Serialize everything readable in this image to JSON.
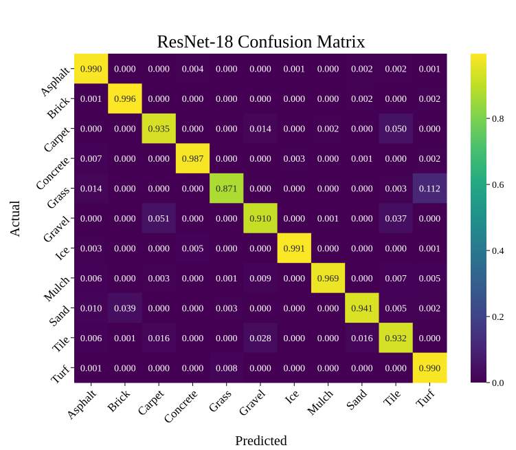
{
  "chart_data": {
    "type": "heatmap",
    "title": "ResNet-18 Confusion Matrix",
    "xlabel": "Predicted",
    "ylabel": "Actual",
    "x_categories": [
      "Asphalt",
      "Brick",
      "Carpet",
      "Concrete",
      "Grass",
      "Gravel",
      "Ice",
      "Mulch",
      "Sand",
      "Tile",
      "Turf"
    ],
    "y_categories": [
      "Asphalt",
      "Brick",
      "Carpet",
      "Concrete",
      "Grass",
      "Gravel",
      "Ice",
      "Mulch",
      "Sand",
      "Tile",
      "Turf"
    ],
    "values": [
      [
        0.99,
        0.0,
        0.0,
        0.004,
        0.0,
        0.0,
        0.001,
        0.0,
        0.002,
        0.002,
        0.001
      ],
      [
        0.001,
        0.996,
        0.0,
        0.0,
        0.0,
        0.0,
        0.0,
        0.0,
        0.002,
        0.0,
        0.002
      ],
      [
        0.0,
        0.0,
        0.935,
        0.0,
        0.0,
        0.014,
        0.0,
        0.002,
        0.0,
        0.05,
        0.0
      ],
      [
        0.007,
        0.0,
        0.0,
        0.987,
        0.0,
        0.0,
        0.003,
        0.0,
        0.001,
        0.0,
        0.002
      ],
      [
        0.014,
        0.0,
        0.0,
        0.0,
        0.871,
        0.0,
        0.0,
        0.0,
        0.0,
        0.003,
        0.112
      ],
      [
        0.0,
        0.0,
        0.051,
        0.0,
        0.0,
        0.91,
        0.0,
        0.001,
        0.0,
        0.037,
        0.0
      ],
      [
        0.003,
        0.0,
        0.0,
        0.005,
        0.0,
        0.0,
        0.991,
        0.0,
        0.0,
        0.0,
        0.001
      ],
      [
        0.006,
        0.0,
        0.003,
        0.0,
        0.001,
        0.009,
        0.0,
        0.969,
        0.0,
        0.007,
        0.005
      ],
      [
        0.01,
        0.039,
        0.0,
        0.0,
        0.003,
        0.0,
        0.0,
        0.0,
        0.941,
        0.005,
        0.002
      ],
      [
        0.006,
        0.001,
        0.016,
        0.0,
        0.0,
        0.028,
        0.0,
        0.0,
        0.016,
        0.932,
        0.0
      ],
      [
        0.001,
        0.0,
        0.0,
        0.0,
        0.008,
        0.0,
        0.0,
        0.0,
        0.0,
        0.0,
        0.99
      ]
    ],
    "colormap": "viridis",
    "colorbar": {
      "range": [
        0.0,
        0.996
      ],
      "ticks": [
        0.0,
        0.2,
        0.4,
        0.6,
        0.8
      ],
      "tick_labels": [
        "0.0",
        "0.2",
        "0.4",
        "0.6",
        "0.8"
      ]
    },
    "annotation_format": "3 decimals",
    "grid": false,
    "legend": "colorbar-right"
  }
}
